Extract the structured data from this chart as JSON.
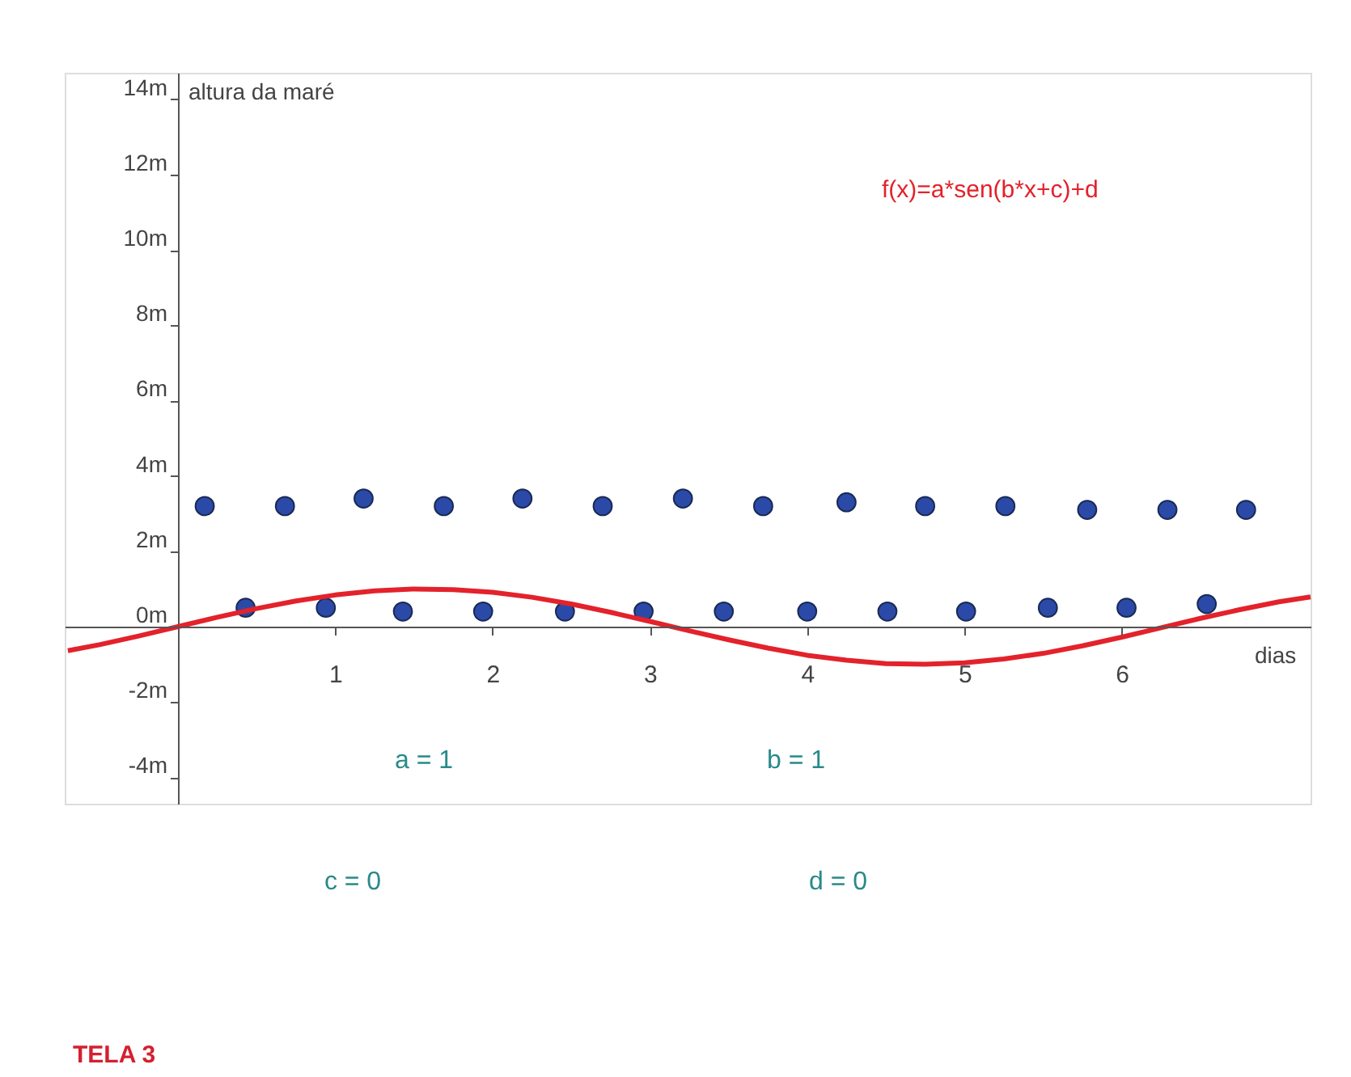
{
  "chart_data": {
    "type": "scatter",
    "xlabel": "dias",
    "ylabel": "altura da maré",
    "xlim": [
      -0.72,
      7.2
    ],
    "ylim": [
      -4.7,
      14.7
    ],
    "xticks": [
      1,
      2,
      3,
      4,
      5,
      6
    ],
    "yticks": [
      {
        "value": -4,
        "label": "-4m"
      },
      {
        "value": -2,
        "label": "-2m"
      },
      {
        "value": 0,
        "label": "0m"
      },
      {
        "value": 2,
        "label": "2m"
      },
      {
        "value": 4,
        "label": "4m"
      },
      {
        "value": 6,
        "label": "6m"
      },
      {
        "value": 8,
        "label": "8m"
      },
      {
        "value": 10,
        "label": "10m"
      },
      {
        "value": 12,
        "label": "12m"
      },
      {
        "value": 14,
        "label": "14m"
      }
    ],
    "grid": false,
    "marker": "circle",
    "annotations": [
      "f(x)=a*sen(b*x+c)+d",
      "a = 1",
      "b = 1",
      "c = 0",
      "d = 0",
      "TELA 3"
    ],
    "series": [
      {
        "color": "#2b4aa8",
        "x": [
          0.17,
          0.43,
          0.68,
          0.94,
          1.18,
          1.43,
          1.69,
          1.94,
          2.19,
          2.46,
          2.7,
          2.96,
          3.21,
          3.47,
          3.72,
          4.0,
          4.25,
          4.51,
          4.75,
          5.01,
          5.26,
          5.53,
          5.78,
          6.03,
          6.29,
          6.54,
          6.79
        ],
        "values": [
          3.2,
          0.5,
          3.2,
          0.5,
          3.4,
          0.4,
          3.2,
          0.4,
          3.4,
          0.4,
          3.2,
          0.4,
          3.4,
          0.4,
          3.2,
          0.4,
          3.3,
          0.4,
          3.2,
          0.4,
          3.2,
          0.5,
          3.1,
          0.5,
          3.1,
          0.6,
          3.1
        ]
      },
      {
        "type": "line",
        "marker": "none",
        "color": "#e3222b",
        "x": [
          -0.7,
          -0.5,
          -0.25,
          0,
          0.25,
          0.5,
          0.75,
          1,
          1.25,
          1.5,
          1.75,
          2,
          2.25,
          2.5,
          2.75,
          3,
          3.25,
          3.5,
          3.75,
          4,
          4.25,
          4.5,
          4.75,
          5,
          5.25,
          5.5,
          5.75,
          6,
          6.25,
          6.5,
          6.75,
          7,
          7.2
        ],
        "values": [
          -0.64,
          -0.48,
          -0.25,
          0,
          0.25,
          0.48,
          0.68,
          0.84,
          0.95,
          1.0,
          0.98,
          0.91,
          0.78,
          0.6,
          0.38,
          0.14,
          -0.11,
          -0.35,
          -0.57,
          -0.76,
          -0.89,
          -0.98,
          -1.0,
          -0.96,
          -0.86,
          -0.71,
          -0.51,
          -0.28,
          -0.03,
          0.22,
          0.45,
          0.66,
          0.79
        ]
      }
    ]
  }
}
